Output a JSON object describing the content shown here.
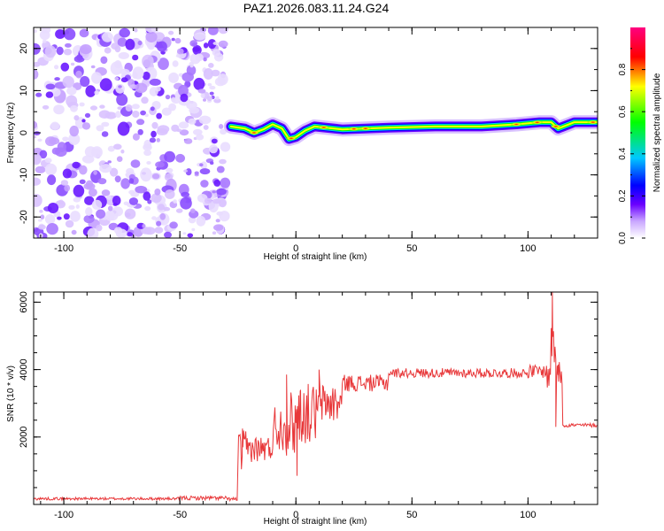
{
  "title": "PAZ1.2026.083.11.24.G24",
  "chart_data": [
    {
      "type": "heatmap",
      "name": "spectrogram",
      "xlabel": "Height of straight line (km)",
      "ylabel": "Frequency (Hz)",
      "xlim": [
        -113,
        130
      ],
      "ylim": [
        -25,
        25
      ],
      "x_ticks": [
        "-100",
        "-50",
        "0",
        "50",
        "100"
      ],
      "y_ticks": [
        "20",
        "10",
        "0",
        "-10",
        "-20"
      ],
      "noise_region_x": [
        -113,
        -30
      ],
      "ridge": [
        {
          "x": -28,
          "f": 1.5
        },
        {
          "x": -22,
          "f": 1.0
        },
        {
          "x": -18,
          "f": 0.0
        },
        {
          "x": -14,
          "f": 0.8
        },
        {
          "x": -10,
          "f": 2.0
        },
        {
          "x": -6,
          "f": 1.0
        },
        {
          "x": -3,
          "f": -1.5
        },
        {
          "x": 0,
          "f": -1.0
        },
        {
          "x": 4,
          "f": 0.5
        },
        {
          "x": 8,
          "f": 1.5
        },
        {
          "x": 20,
          "f": 0.8
        },
        {
          "x": 40,
          "f": 1.2
        },
        {
          "x": 60,
          "f": 1.5
        },
        {
          "x": 80,
          "f": 1.5
        },
        {
          "x": 95,
          "f": 2.0
        },
        {
          "x": 105,
          "f": 2.5
        },
        {
          "x": 110,
          "f": 2.5
        },
        {
          "x": 113,
          "f": 1.0
        },
        {
          "x": 120,
          "f": 2.5
        },
        {
          "x": 130,
          "f": 2.5
        }
      ],
      "hotspots": [
        -18,
        -2,
        12,
        25,
        30,
        95,
        104,
        112,
        128
      ]
    },
    {
      "type": "colorbar",
      "name": "colorbar",
      "label": "Normalized spectral amplitude",
      "ticks": [
        "0.0",
        "0.2",
        "0.4",
        "0.6",
        "0.8"
      ],
      "range": [
        0,
        1
      ],
      "colors": [
        "#ffffff",
        "#6a00ff",
        "#0000ff",
        "#00c8ff",
        "#00ff00",
        "#ffff00",
        "#ff0000",
        "#ff00ff"
      ]
    },
    {
      "type": "line",
      "name": "snr",
      "xlabel": "Height of straight line (km)",
      "ylabel": "SNR (10 * v/v)",
      "xlim": [
        -113,
        130
      ],
      "ylim": [
        0,
        6300
      ],
      "x_ticks": [
        "-100",
        "-50",
        "0",
        "50",
        "100"
      ],
      "y_ticks": [
        "6000",
        "4000",
        "2000"
      ],
      "color": "#e8383a",
      "segments": [
        {
          "x0": -113,
          "x1": -50,
          "base": 170,
          "amp": 40
        },
        {
          "x0": -50,
          "x1": -30,
          "base": 190,
          "amp": 60
        },
        {
          "x0": -30,
          "x1": -25,
          "base": 160,
          "amp": 50
        },
        {
          "x0": -25,
          "x1": -21,
          "base": 1500,
          "amp": 700
        },
        {
          "x0": -21,
          "x1": -10,
          "base": 1650,
          "amp": 400
        },
        {
          "x0": -10,
          "x1": -4,
          "base": 2300,
          "amp": 700
        },
        {
          "x0": -4,
          "x1": 0,
          "base": 2400,
          "amp": 1000
        },
        {
          "x0": 0,
          "x1": 10,
          "base": 2700,
          "amp": 900
        },
        {
          "x0": 10,
          "x1": 20,
          "base": 3000,
          "amp": 600
        },
        {
          "x0": 20,
          "x1": 40,
          "base": 3600,
          "amp": 250
        },
        {
          "x0": 40,
          "x1": 100,
          "base": 3900,
          "amp": 140
        },
        {
          "x0": 100,
          "x1": 108,
          "base": 3950,
          "amp": 200
        },
        {
          "x0": 108,
          "x1": 110,
          "base": 3800,
          "amp": 400
        },
        {
          "x0": 110,
          "x1": 112,
          "base": 5000,
          "amp": 1000
        },
        {
          "x0": 112,
          "x1": 115,
          "base": 3900,
          "amp": 400
        },
        {
          "x0": 115,
          "x1": 130,
          "base": 2350,
          "amp": 60
        }
      ],
      "spikes": [
        {
          "x": -23,
          "y": 2250
        },
        {
          "x": -4,
          "y": 3850
        },
        {
          "x": 0.5,
          "y": 850
        },
        {
          "x": 2,
          "y": 3400
        },
        {
          "x": 10,
          "y": 4000
        },
        {
          "x": 110.5,
          "y": 6300
        },
        {
          "x": 112,
          "y": 2300
        },
        {
          "x": 113,
          "y": 4150
        }
      ]
    }
  ]
}
